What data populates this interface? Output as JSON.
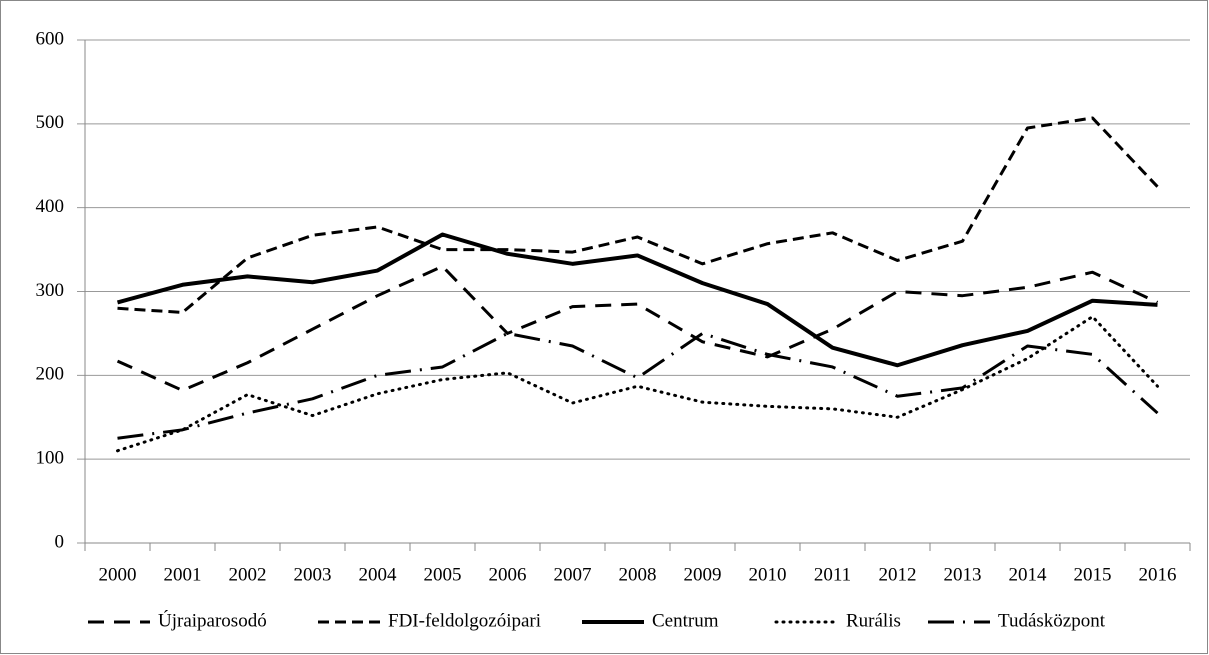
{
  "chart_data": {
    "type": "line",
    "categories": [
      "2000",
      "2001",
      "2002",
      "2003",
      "2004",
      "2005",
      "2006",
      "2007",
      "2008",
      "2009",
      "2010",
      "2011",
      "2012",
      "2013",
      "2014",
      "2015",
      "2016"
    ],
    "series": [
      {
        "name": "Újraiparosodó",
        "color": "#000000",
        "dash": "16 10",
        "values": [
          217,
          182,
          215,
          255,
          295,
          330,
          250,
          282,
          285,
          240,
          222,
          255,
          300,
          295,
          305,
          323,
          287
        ]
      },
      {
        "name": "FDI-feldolgozóipari",
        "color": "#000000",
        "dash": "11 6",
        "values": [
          280,
          275,
          340,
          367,
          377,
          350,
          350,
          347,
          365,
          333,
          357,
          370,
          337,
          360,
          495,
          507,
          425
        ]
      },
      {
        "name": "Centrum",
        "color": "#000000",
        "dash": "none",
        "values": [
          287,
          308,
          318,
          311,
          325,
          368,
          345,
          333,
          343,
          310,
          285,
          233,
          212,
          236,
          253,
          289,
          284
        ]
      },
      {
        "name": "Rurális",
        "color": "#000000",
        "dash": "1 6",
        "values": [
          110,
          135,
          177,
          152,
          178,
          195,
          203,
          167,
          187,
          168,
          163,
          160,
          150,
          183,
          220,
          270,
          187
        ]
      },
      {
        "name": "Tudásközpont",
        "color": "#000000",
        "dash": "26 9 2 9",
        "values": [
          125,
          135,
          155,
          172,
          200,
          210,
          250,
          235,
          197,
          250,
          225,
          210,
          175,
          185,
          235,
          225,
          155
        ]
      }
    ],
    "ylim": [
      0,
      600
    ],
    "yticks": [
      0,
      100,
      200,
      300,
      400,
      500,
      600
    ],
    "grid": true,
    "legend": "bottom"
  }
}
